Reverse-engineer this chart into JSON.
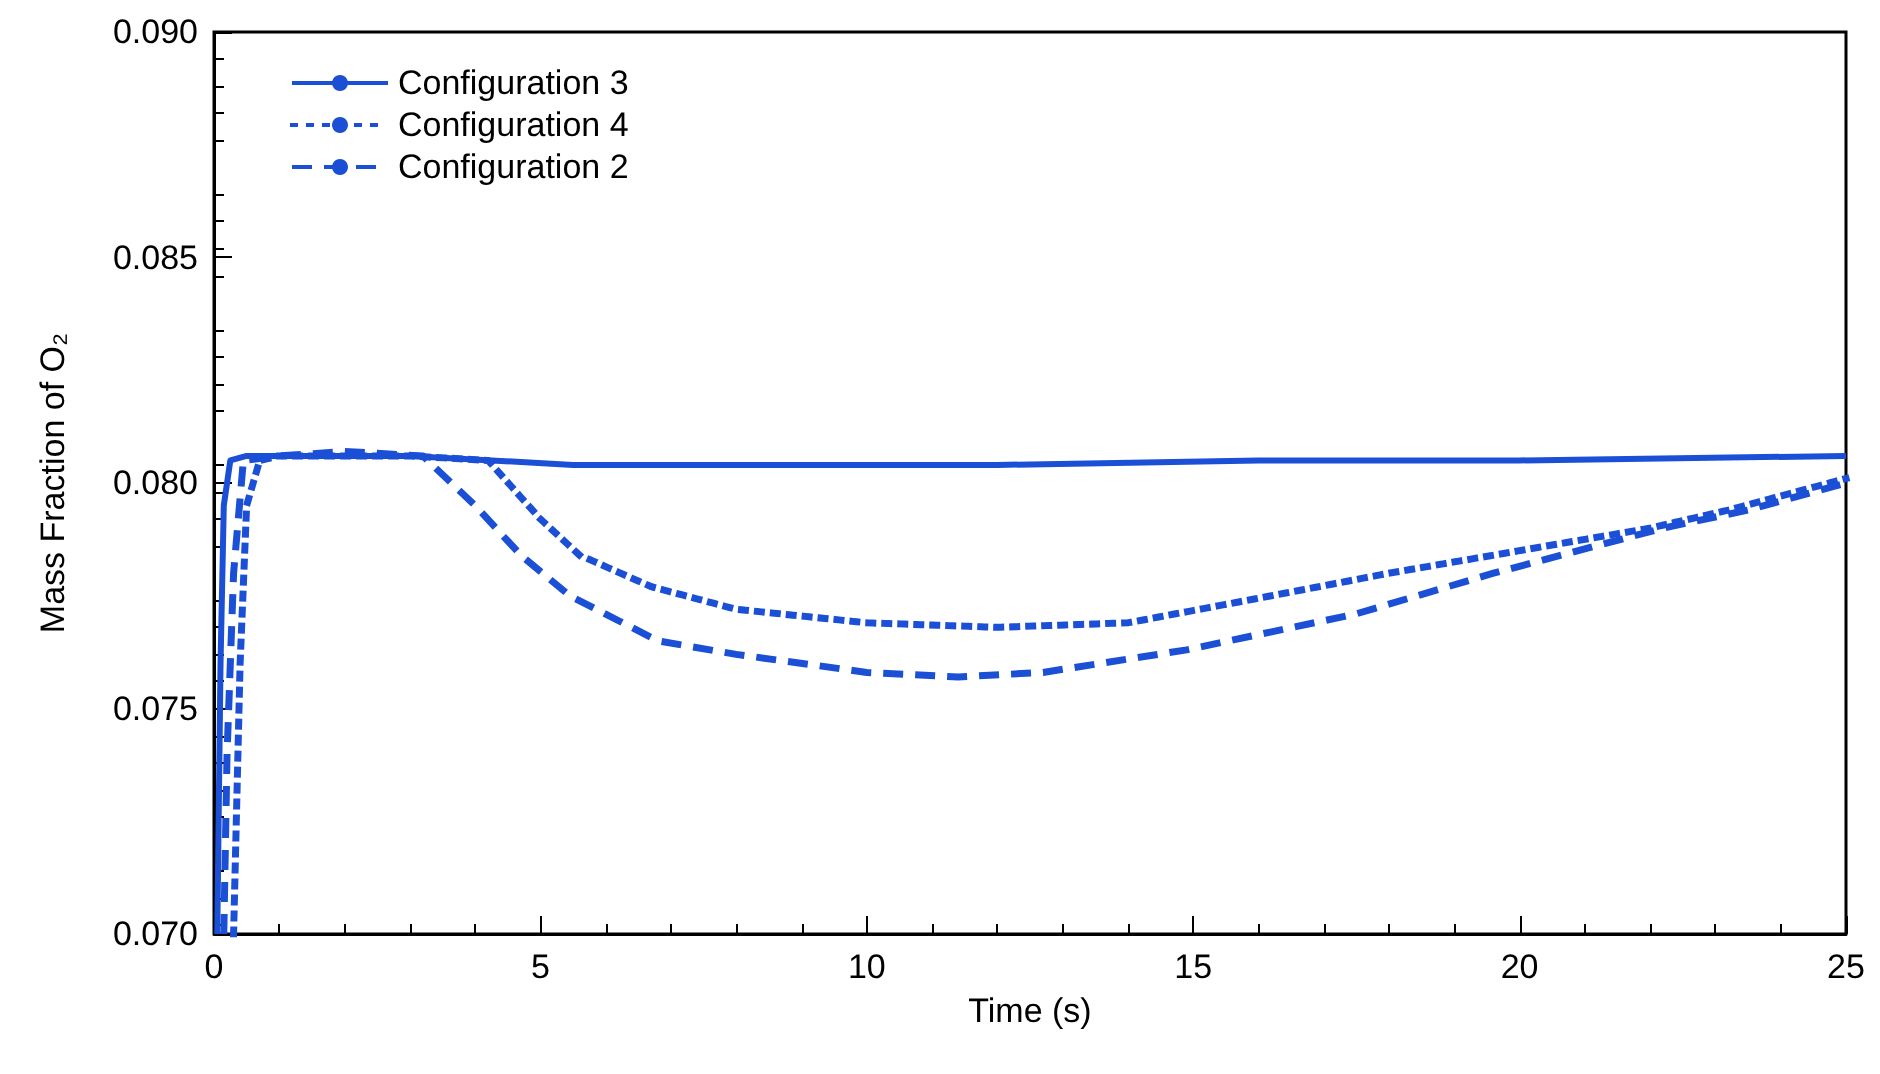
{
  "chart_data": {
    "type": "line",
    "xlabel": "Time (s)",
    "ylabel": "Mass Fraction of O₂",
    "xlim": [
      0,
      25
    ],
    "xticks": [
      0,
      5,
      10,
      15,
      20,
      25
    ],
    "ylim": [
      0.07,
      0.09
    ],
    "yticks": [
      {
        "value": 0.07,
        "label": "0.070"
      },
      {
        "value": 0.075,
        "label": "0.075"
      },
      {
        "value": 0.08,
        "label": "0.080"
      },
      {
        "value": 0.085,
        "label": "0.085"
      },
      {
        "value": 0.09,
        "label": "0.090"
      }
    ],
    "grid": false,
    "legend": "top left",
    "marker": "none",
    "series": [
      {
        "name": "Configuration 3",
        "color": "#1a4fd6",
        "line_style": "solid",
        "x": [
          0.05,
          0.1,
          0.15,
          0.25,
          0.5,
          1,
          3,
          5.5,
          8,
          12,
          16,
          20,
          25
        ],
        "values": [
          0.07,
          0.076,
          0.0795,
          0.0805,
          0.0806,
          0.0806,
          0.0806,
          0.0804,
          0.0804,
          0.0804,
          0.0805,
          0.0805,
          0.0806
        ]
      },
      {
        "name": "Configuration 4",
        "color": "#1a4fd6",
        "line_style": "dotted",
        "x": [
          0.3,
          0.4,
          0.5,
          0.7,
          1,
          2,
          3,
          4.2,
          5,
          5.6,
          6.7,
          8,
          10,
          12,
          14,
          16.2,
          18,
          20,
          22,
          23.2,
          25
        ],
        "values": [
          0.07,
          0.076,
          0.0795,
          0.0805,
          0.0806,
          0.0806,
          0.0806,
          0.0805,
          0.0792,
          0.0784,
          0.0777,
          0.0772,
          0.0769,
          0.0768,
          0.0769,
          0.0775,
          0.078,
          0.0785,
          0.079,
          0.0794,
          0.0801
        ]
      },
      {
        "name": "Configuration 2",
        "color": "#1a4fd6",
        "line_style": "dashed",
        "x": [
          0.15,
          0.2,
          0.3,
          0.45,
          1,
          2,
          3.2,
          4,
          4.7,
          5.45,
          6.8,
          8,
          10,
          11.4,
          12.7,
          14.9,
          16.2,
          17.5,
          19.6,
          22.2,
          23.5,
          25
        ],
        "values": [
          0.07,
          0.074,
          0.078,
          0.0805,
          0.0806,
          0.0807,
          0.0806,
          0.0795,
          0.0784,
          0.0775,
          0.0765,
          0.0762,
          0.0758,
          0.0757,
          0.0758,
          0.0763,
          0.0767,
          0.0771,
          0.078,
          0.079,
          0.0794,
          0.08
        ]
      }
    ]
  }
}
